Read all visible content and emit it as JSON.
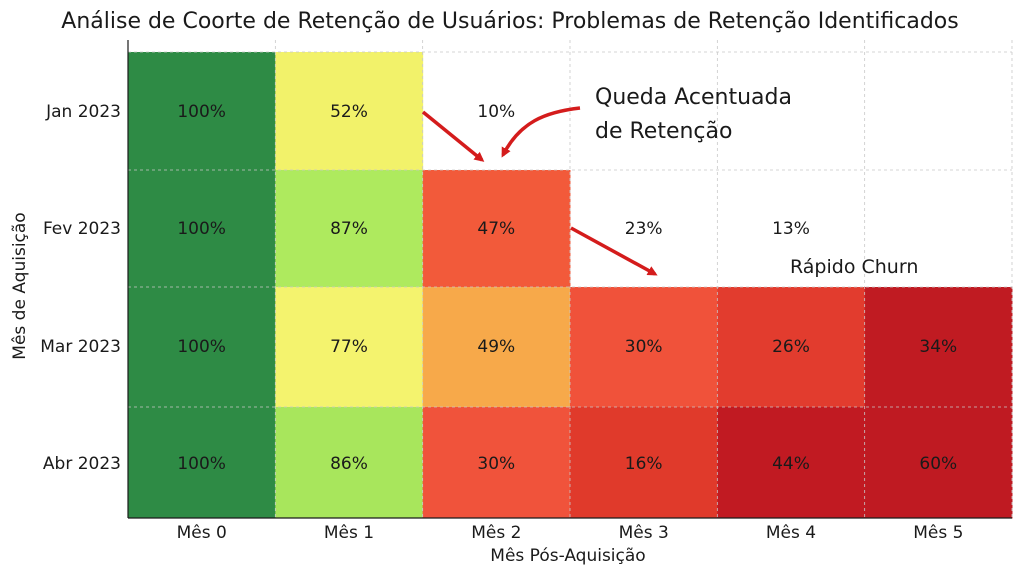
{
  "chart_data": {
    "type": "heatmap",
    "title": "Análise de Coorte de Retenção de Usuários: Problemas de Retenção Identificados",
    "xlabel": "Mês Pós-Aquisição",
    "ylabel": "Mês de Aquisição",
    "x_categories": [
      "Mês 0",
      "Mês 1",
      "Mês 2",
      "Mês 3",
      "Mês 4",
      "Mês 5"
    ],
    "y_categories": [
      "Jan 2023",
      "Fev 2023",
      "Mar 2023",
      "Abr 2023"
    ],
    "grid": true,
    "rows": [
      {
        "cohort": "Jan 2023",
        "cells": [
          {
            "label": "100%",
            "value": 100,
            "color": "#2e8b45"
          },
          {
            "label": "52%",
            "value": 52,
            "color": "#f2f26a"
          },
          {
            "label": "10%",
            "value": 10,
            "color": null
          }
        ]
      },
      {
        "cohort": "Fev 2023",
        "cells": [
          {
            "label": "100%",
            "value": 100,
            "color": "#2e8b45"
          },
          {
            "label": "87%",
            "value": 87,
            "color": "#aeea5e"
          },
          {
            "label": "47%",
            "value": 47,
            "color": "#f25a3a"
          },
          {
            "label": "23%",
            "value": 23,
            "color": null
          },
          {
            "label": "13%",
            "value": 13,
            "color": null
          }
        ]
      },
      {
        "cohort": "Mar 2023",
        "cells": [
          {
            "label": "100%",
            "value": 100,
            "color": "#2e8b45"
          },
          {
            "label": "77%",
            "value": 77,
            "color": "#f4f36e"
          },
          {
            "label": "49%",
            "value": 49,
            "color": "#f7a94a"
          },
          {
            "label": "30%",
            "value": 30,
            "color": "#f0523a"
          },
          {
            "label": "26%",
            "value": 26,
            "color": "#e23c2e"
          },
          {
            "label": "34%",
            "value": 34,
            "color": "#c01b22"
          }
        ]
      },
      {
        "cohort": "Abr 2023",
        "cells": [
          {
            "label": "100%",
            "value": 100,
            "color": "#2e8b45"
          },
          {
            "label": "86%",
            "value": 86,
            "color": "#a8e65c"
          },
          {
            "label": "30%",
            "value": 30,
            "color": "#f0533b"
          },
          {
            "label": "16%",
            "value": 16,
            "color": "#e03a2b"
          },
          {
            "label": "44%",
            "value": 44,
            "color": "#c11a22"
          },
          {
            "label": "60%",
            "value": 60,
            "color": "#bf1a22"
          }
        ]
      }
    ],
    "annotations": [
      {
        "text_lines": [
          "Queda Acentuada",
          "de Retenção"
        ],
        "target": "Fev 2023 / Mês 2"
      },
      {
        "text_lines": [
          "Rápido Churn"
        ],
        "target": "Mar 2023 / Mês 3"
      }
    ],
    "colors": {
      "arrow": "#d41c1c",
      "grid": "#c8c8c8"
    }
  }
}
